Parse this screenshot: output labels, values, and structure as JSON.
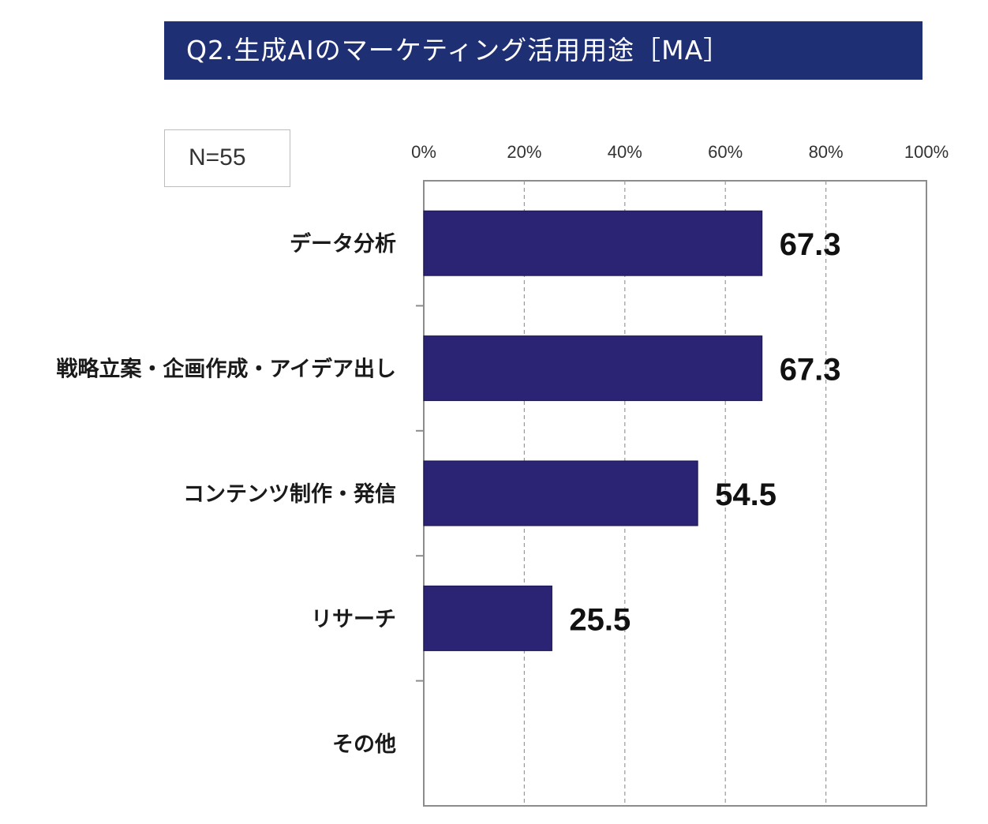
{
  "chart_data": {
    "type": "bar",
    "orientation": "horizontal",
    "title": "Q2.生成AIのマーケティング活用用途［MA］",
    "sample_size_label": "N=55",
    "categories": [
      "データ分析",
      "戦略立案・企画作成・アイデア出し",
      "コンテンツ制作・発信",
      "リサーチ",
      "その他"
    ],
    "values": [
      67.3,
      67.3,
      54.5,
      25.5,
      null
    ],
    "value_labels": [
      "67.3",
      "67.3",
      "54.5",
      "25.5",
      ""
    ],
    "x_ticks": [
      0,
      20,
      40,
      60,
      80,
      100
    ],
    "x_tick_labels": [
      "0%",
      "20%",
      "40%",
      "60%",
      "80%",
      "100%"
    ],
    "xlim": [
      0,
      100
    ],
    "grid": "vertical-dashed",
    "bar_color": "#2b2373",
    "axis_position": "top"
  }
}
